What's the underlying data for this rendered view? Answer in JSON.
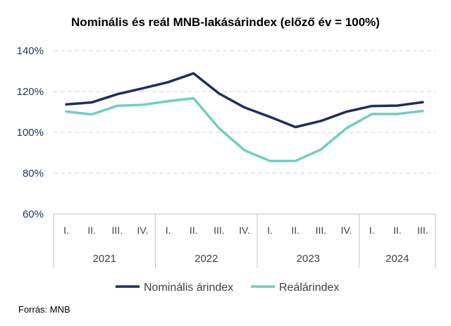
{
  "chart_data": {
    "type": "line",
    "title": "Nominális és reál MNB-lakásárindex (előző év = 100%)",
    "xlabel": "",
    "ylabel": "",
    "ylim": [
      60,
      140
    ],
    "yticks": [
      60,
      80,
      100,
      120,
      140
    ],
    "ytick_labels": [
      "60%",
      "80%",
      "100%",
      "120%",
      "140%"
    ],
    "categories": [
      "I.",
      "II.",
      "III.",
      "IV.",
      "I.",
      "II.",
      "III.",
      "IV.",
      "I.",
      "II.",
      "III.",
      "IV.",
      "I.",
      "II.",
      "III."
    ],
    "groups": [
      {
        "label": "2021",
        "count": 4
      },
      {
        "label": "2022",
        "count": 4
      },
      {
        "label": "2023",
        "count": 4
      },
      {
        "label": "2024",
        "count": 3
      }
    ],
    "grid": true,
    "legend_position": "bottom",
    "series": [
      {
        "name": "Nominális árindex",
        "color": "#1f2d5c",
        "values": [
          113.7,
          114.7,
          118.7,
          121.6,
          124.6,
          128.9,
          119.0,
          112.2,
          107.6,
          102.6,
          105.6,
          110.1,
          112.9,
          113.1,
          114.8
        ]
      },
      {
        "name": "Reálárindex",
        "color": "#6fcfbf",
        "values": [
          110.2,
          108.8,
          113.0,
          113.5,
          115.3,
          116.7,
          102.0,
          91.2,
          86.0,
          86.0,
          91.6,
          102.0,
          109.0,
          109.0,
          110.5
        ]
      }
    ]
  },
  "source": "Forrás: MNB"
}
